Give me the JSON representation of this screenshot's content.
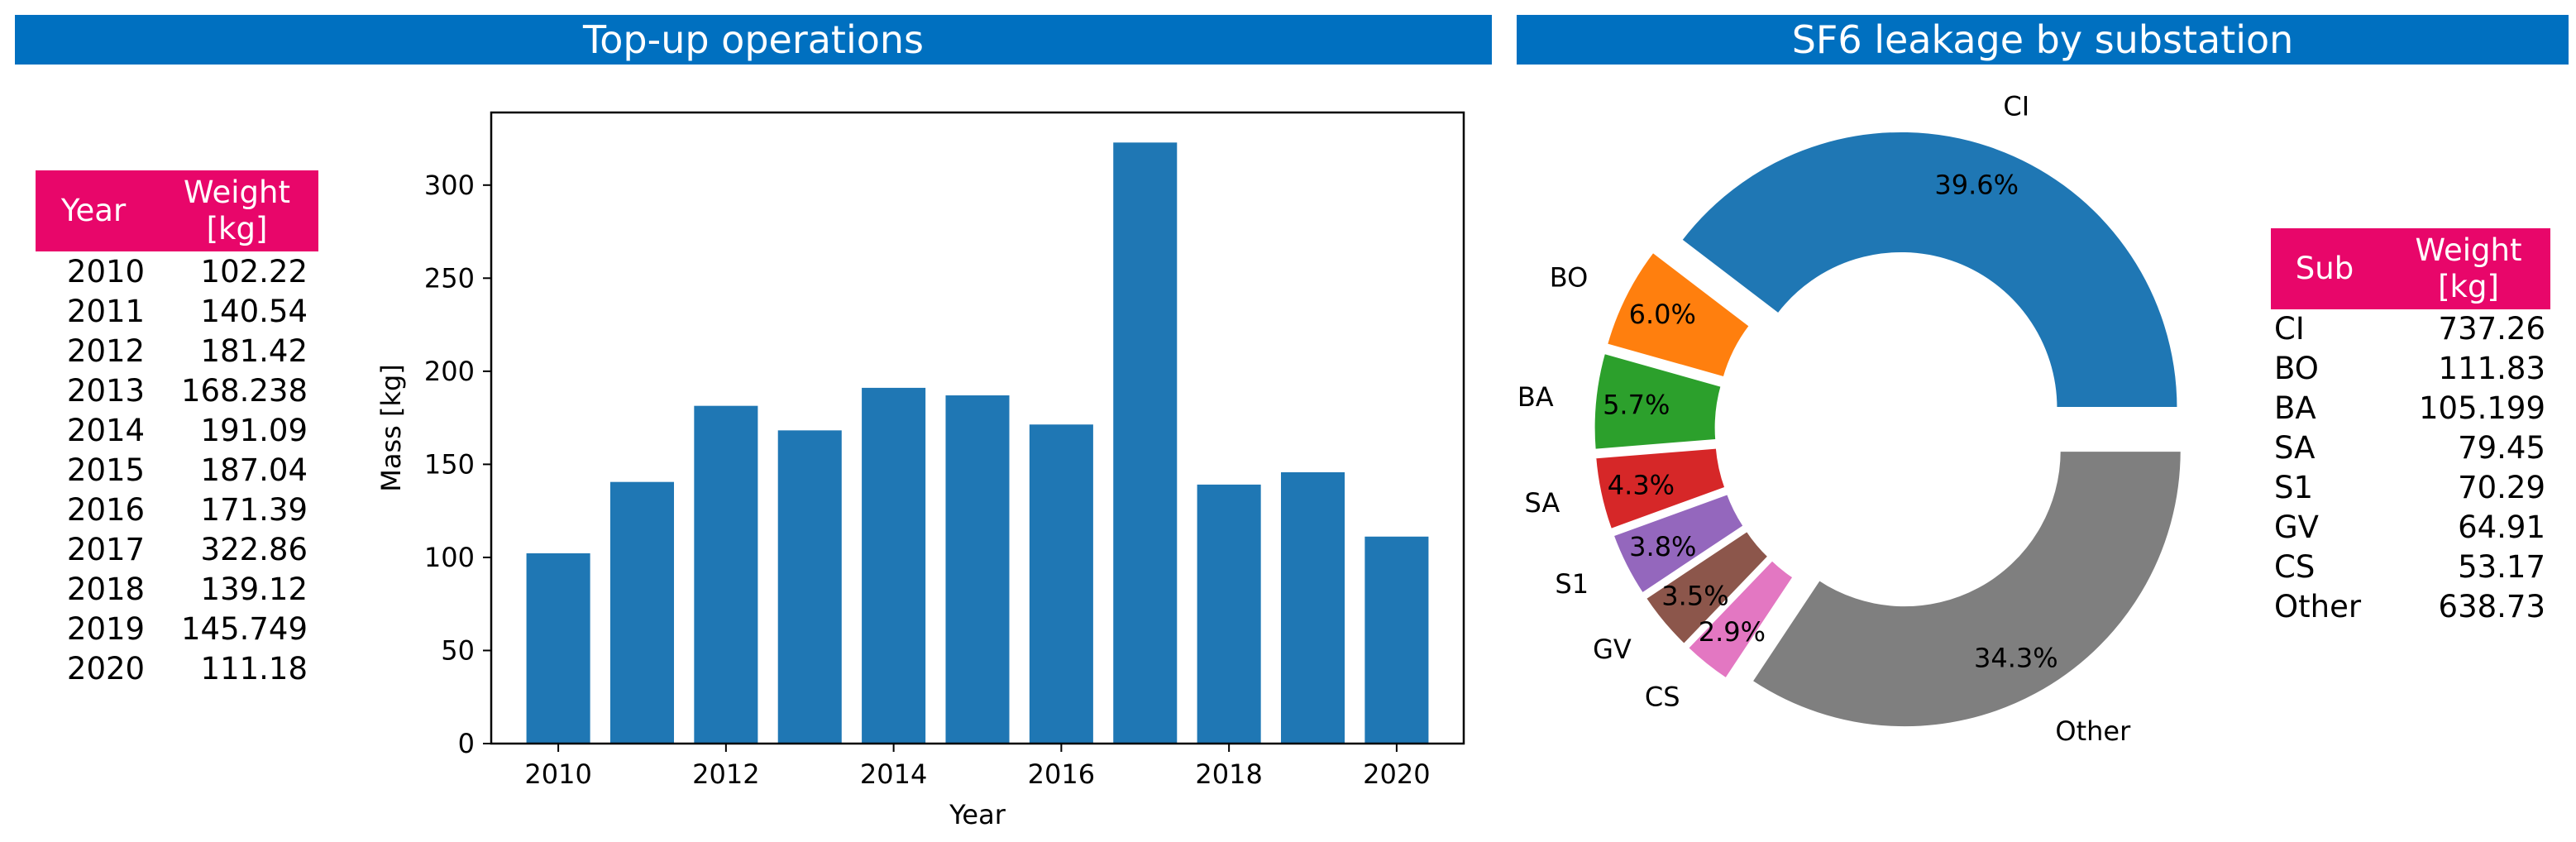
{
  "titles": {
    "left": "Top-up operations",
    "right": "SF6 leakage by substation"
  },
  "left_table": {
    "headers": {
      "col1": "Year",
      "col2_line1": "Weight",
      "col2_line2": "[kg]"
    },
    "rows": [
      {
        "year": "2010",
        "weight": "102.22"
      },
      {
        "year": "2011",
        "weight": "140.54"
      },
      {
        "year": "2012",
        "weight": "181.42"
      },
      {
        "year": "2013",
        "weight": "168.238"
      },
      {
        "year": "2014",
        "weight": "191.09"
      },
      {
        "year": "2015",
        "weight": "187.04"
      },
      {
        "year": "2016",
        "weight": "171.39"
      },
      {
        "year": "2017",
        "weight": "322.86"
      },
      {
        "year": "2018",
        "weight": "139.12"
      },
      {
        "year": "2019",
        "weight": "145.749"
      },
      {
        "year": "2020",
        "weight": "111.18"
      }
    ]
  },
  "right_table": {
    "headers": {
      "col1": "Sub",
      "col2_line1": "Weight",
      "col2_line2": "[kg]"
    },
    "rows": [
      {
        "sub": "CI",
        "weight": "737.26"
      },
      {
        "sub": "BO",
        "weight": "111.83"
      },
      {
        "sub": "BA",
        "weight": "105.199"
      },
      {
        "sub": "SA",
        "weight": "79.45"
      },
      {
        "sub": "S1",
        "weight": "70.29"
      },
      {
        "sub": "GV",
        "weight": "64.91"
      },
      {
        "sub": "CS",
        "weight": "53.17"
      },
      {
        "sub": "Other",
        "weight": "638.73"
      }
    ]
  },
  "chart_data": [
    {
      "type": "bar",
      "title": "Top-up operations",
      "xlabel": "Year",
      "ylabel": "Mass [kg]",
      "categories": [
        2010,
        2011,
        2012,
        2013,
        2014,
        2015,
        2016,
        2017,
        2018,
        2019,
        2020
      ],
      "values": [
        102.22,
        140.54,
        181.42,
        168.238,
        191.09,
        187.04,
        171.39,
        322.86,
        139.12,
        145.749,
        111.18
      ],
      "xlim": [
        2009.2,
        2020.8
      ],
      "ylim": [
        0,
        339
      ],
      "xticks": [
        2010,
        2012,
        2014,
        2016,
        2018,
        2020
      ],
      "yticks": [
        0,
        50,
        100,
        150,
        200,
        250,
        300
      ],
      "bar_color": "#1f77b4",
      "grid": false
    },
    {
      "type": "pie",
      "style": "donut",
      "title": "SF6 leakage by substation",
      "start_angle_deg": 0,
      "direction": "counterclockwise",
      "slices": [
        {
          "label": "CI",
          "value": 737.26,
          "pct_label": "39.6%",
          "color": "#1f77b4"
        },
        {
          "label": "BO",
          "value": 111.83,
          "pct_label": "6.0%",
          "color": "#ff7f0e"
        },
        {
          "label": "BA",
          "value": 105.199,
          "pct_label": "5.7%",
          "color": "#2ca02c"
        },
        {
          "label": "SA",
          "value": 79.45,
          "pct_label": "4.3%",
          "color": "#d62728"
        },
        {
          "label": "S1",
          "value": 70.29,
          "pct_label": "3.8%",
          "color": "#9467bd"
        },
        {
          "label": "GV",
          "value": 64.91,
          "pct_label": "3.5%",
          "color": "#8c564b"
        },
        {
          "label": "CS",
          "value": 53.17,
          "pct_label": "2.9%",
          "color": "#e377c2"
        },
        {
          "label": "Other",
          "value": 638.73,
          "pct_label": "34.3%",
          "color": "#7f7f7f"
        }
      ]
    }
  ]
}
